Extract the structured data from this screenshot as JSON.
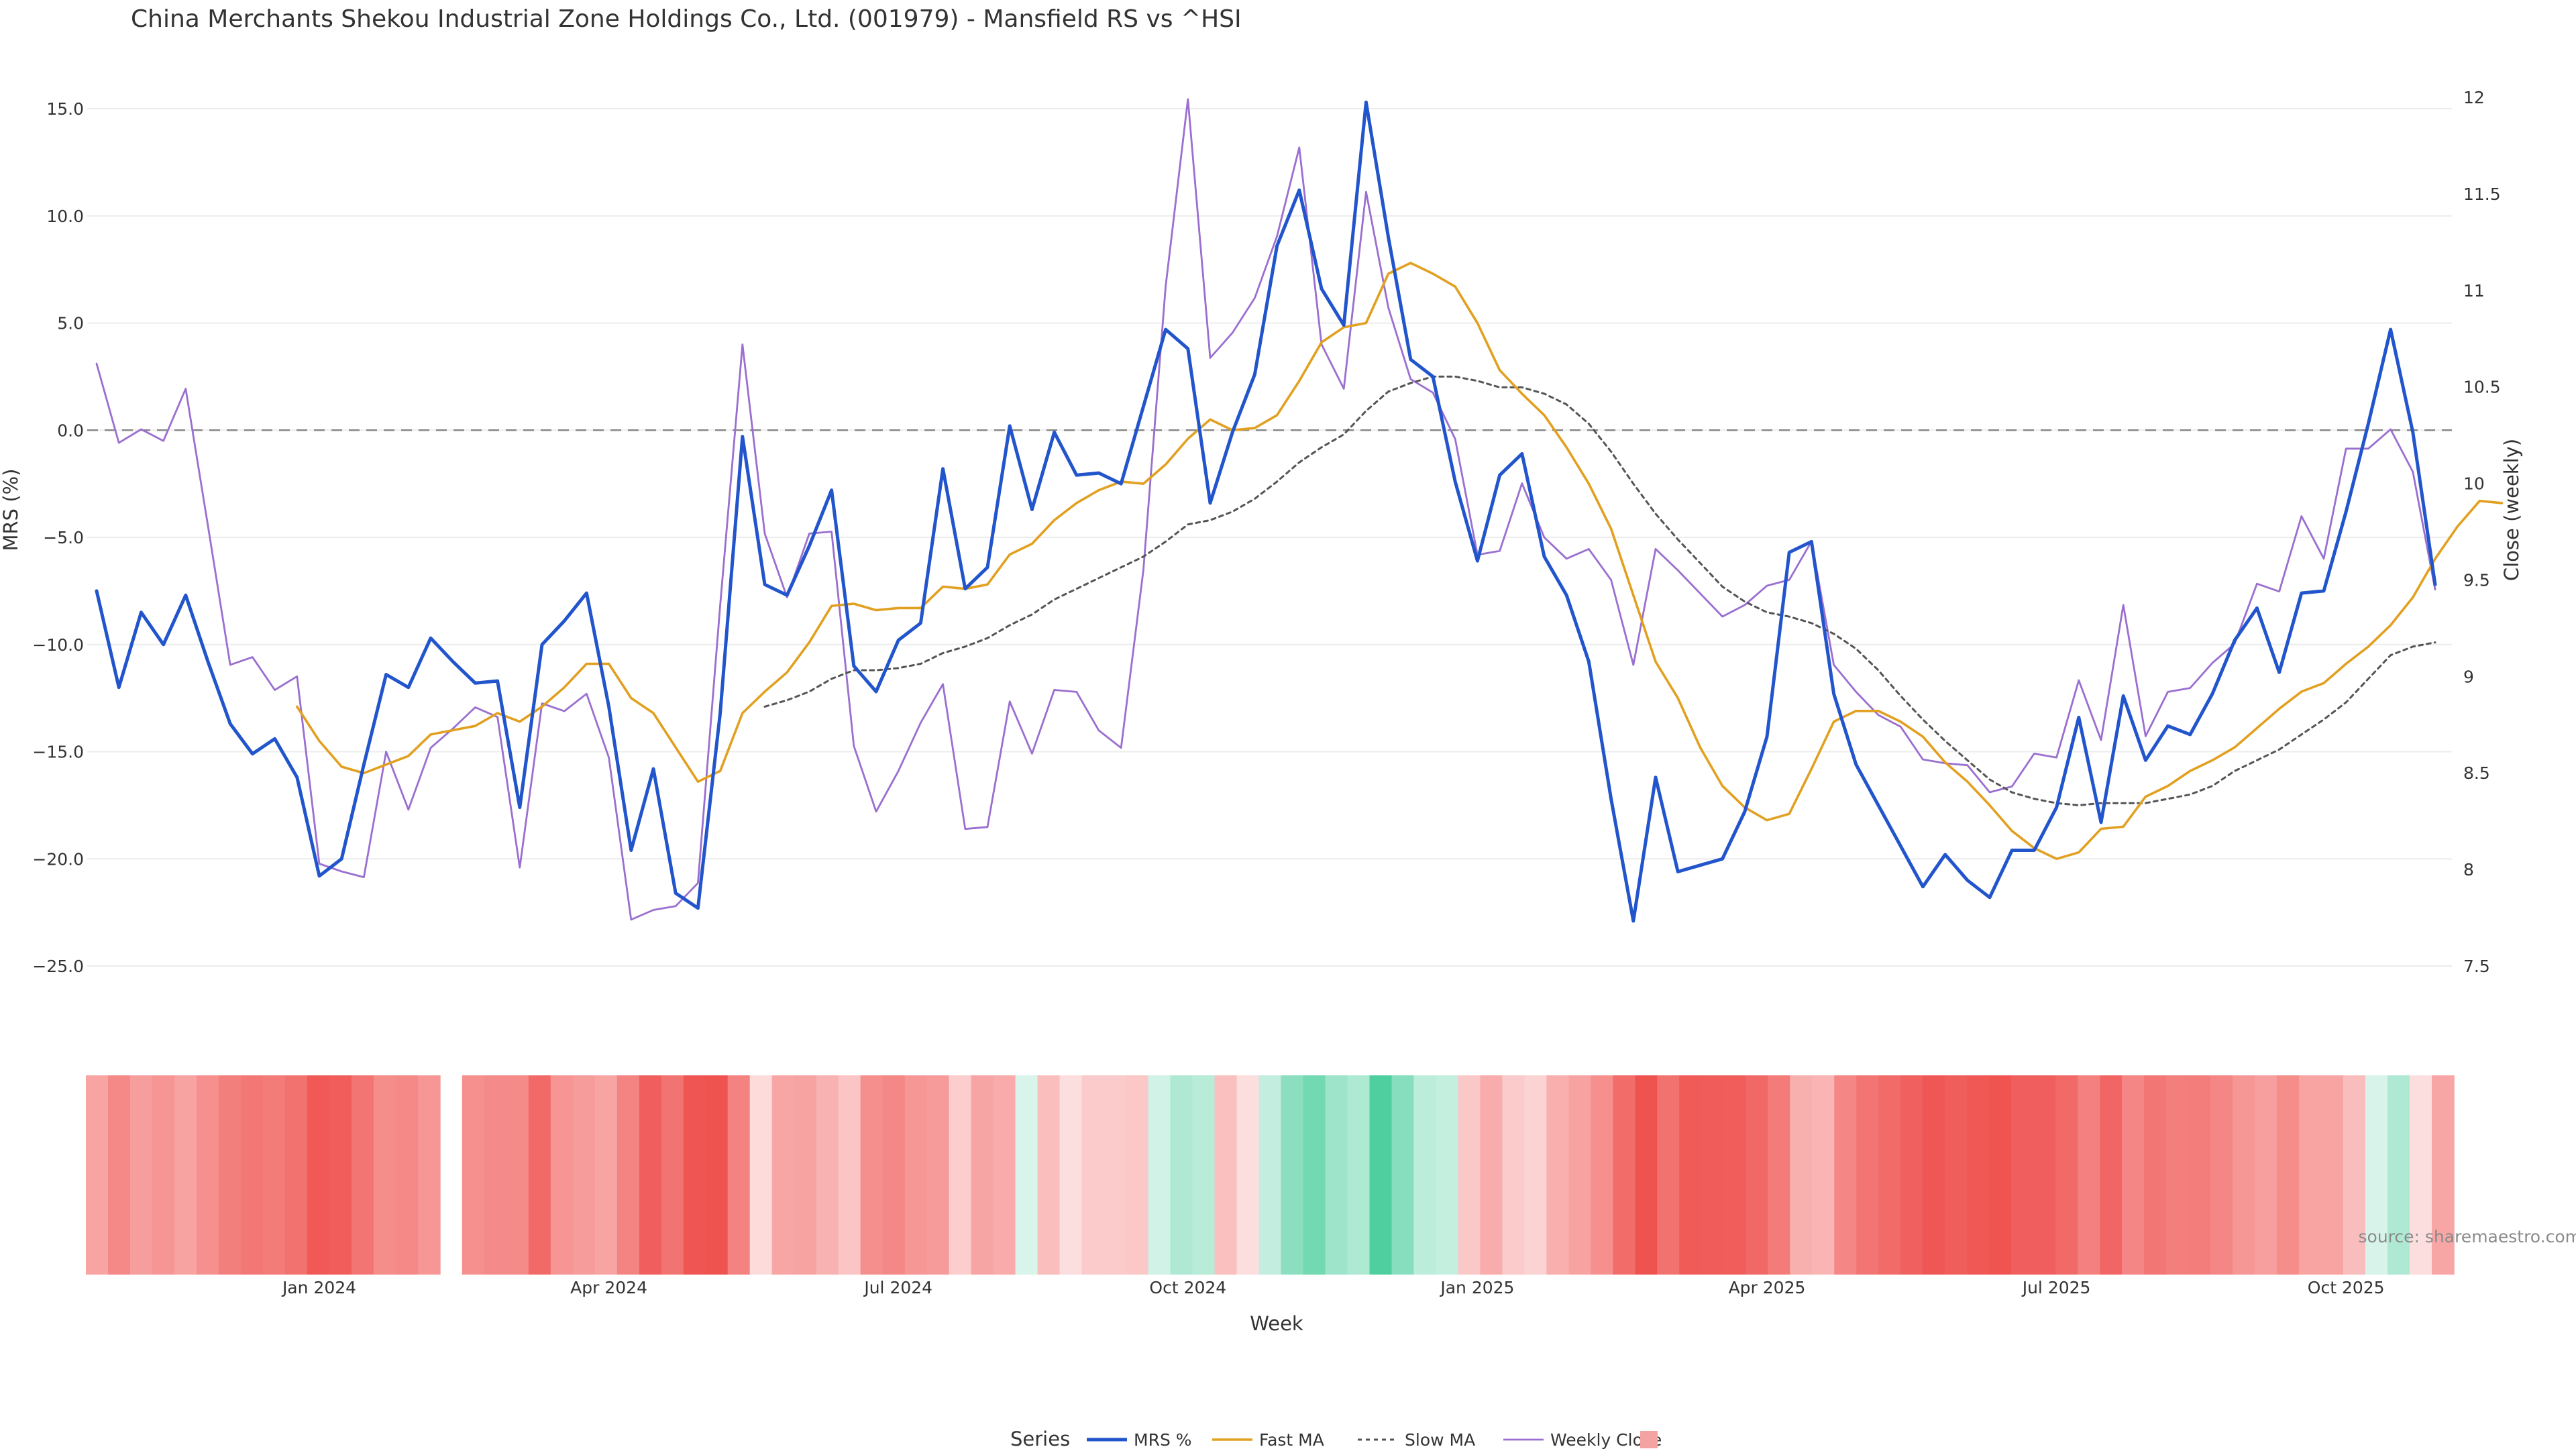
{
  "chart_data": {
    "type": "line",
    "title": "China Merchants Shekou Industrial Zone Holdings Co., Ltd. (001979) - Mansfield RS vs ^HSI",
    "ylabel": "MRS (%)",
    "y2label": "Close (weekly)",
    "xlabel": "Week",
    "ylim": [
      -25,
      15
    ],
    "y_ticks": [
      "15.0",
      "10.0",
      "5.0",
      "0.0",
      "−5.0",
      "−10.0",
      "−15.0",
      "−20.0",
      "−25.0"
    ],
    "y2lim": [
      7.5,
      12
    ],
    "y2_ticks": [
      "12",
      "11.5",
      "11",
      "10.5",
      "10",
      "9.5",
      "9",
      "8.5",
      "8",
      "7.5"
    ],
    "x_ticks": [
      "Jan 2024",
      "Apr 2024",
      "Jul 2024",
      "Oct 2024",
      "Jan 2025",
      "Apr 2025",
      "Jul 2025",
      "Oct 2025"
    ],
    "x_tick_weeks": [
      10,
      23,
      36,
      49,
      62,
      75,
      88,
      101
    ],
    "week_count": 106,
    "reference_line": 0,
    "grid": true,
    "legend_position": "bottom",
    "legend_title": "Series",
    "colors": {
      "mrs": "#2255cc",
      "fast_ma": "#e2a020",
      "slow_ma": "#555555",
      "weekly_close": "#9a6fd0",
      "zero_line": "#888888",
      "heat_negative": "#ef5350",
      "heat_positive": "#4fcf9f"
    },
    "series": [
      {
        "name": "MRS %",
        "start_week": 0,
        "values": [
          -7.5,
          -12.0,
          -8.5,
          -10.0,
          -7.7,
          -10.8,
          -13.7,
          -15.1,
          -14.4,
          -16.2,
          -20.8,
          -20.0,
          -15.6,
          -11.4,
          -12.0,
          -9.7,
          -10.8,
          -11.8,
          -11.7,
          -17.6,
          -10.0,
          -8.9,
          -7.6,
          -12.9,
          -19.6,
          -15.8,
          -21.6,
          -22.3,
          -13.2,
          -0.3,
          -7.2,
          -7.7,
          -5.4,
          -2.8,
          -11.0,
          -12.2,
          -9.8,
          -9.0,
          -1.8,
          -7.4,
          -6.4,
          0.2,
          -3.7,
          -0.1,
          -2.1,
          -2.0,
          -2.5,
          1.1,
          4.7,
          3.8,
          -3.4,
          -0.1,
          2.6,
          8.6,
          11.2,
          6.6,
          4.9,
          15.3,
          9.0,
          3.3,
          2.5,
          -2.4,
          -6.1,
          -2.1,
          -1.1,
          -5.9,
          -7.7,
          -10.8,
          -17.2,
          -22.9,
          -16.2,
          -20.6,
          -20.3,
          -20.0,
          -17.8,
          -14.3,
          -5.7,
          -5.2,
          -12.3,
          -15.6,
          -17.5,
          -19.4,
          -21.3,
          -19.8,
          -21.0,
          -21.8,
          -19.6,
          -19.6,
          -17.6,
          -13.4,
          -18.3,
          -12.4,
          -15.4,
          -13.8,
          -14.2,
          -12.3,
          -9.8,
          -8.3,
          -11.3,
          -7.6,
          -7.5,
          -3.8,
          0.3,
          4.7,
          -0.1,
          -7.2
        ]
      },
      {
        "name": "Fast MA",
        "start_week": 9,
        "values": [
          -12.9,
          -14.5,
          -15.7,
          -16.0,
          -15.6,
          -15.2,
          -14.2,
          -14.0,
          -13.8,
          -13.2,
          -13.6,
          -12.9,
          -12.0,
          -10.9,
          -10.9,
          -12.5,
          -13.2,
          -14.8,
          -16.4,
          -15.9,
          -13.2,
          -12.2,
          -11.3,
          -9.9,
          -8.2,
          -8.1,
          -8.4,
          -8.3,
          -8.3,
          -7.3,
          -7.4,
          -7.2,
          -5.8,
          -5.3,
          -4.2,
          -3.4,
          -2.8,
          -2.4,
          -2.5,
          -1.6,
          -0.4,
          0.5,
          0.0,
          0.1,
          0.7,
          2.3,
          4.1,
          4.8,
          5.0,
          7.3,
          7.8,
          7.3,
          6.7,
          5.0,
          2.8,
          1.7,
          0.7,
          -0.8,
          -2.5,
          -4.6,
          -7.7,
          -10.8,
          -12.5,
          -14.8,
          -16.6,
          -17.6,
          -18.2,
          -17.9,
          -15.8,
          -13.6,
          -13.1,
          -13.1,
          -13.6,
          -14.3,
          -15.5,
          -16.4,
          -17.5,
          -18.7,
          -19.5,
          -20.0,
          -19.7,
          -18.6,
          -18.5,
          -17.1,
          -16.6,
          -15.9,
          -15.4,
          -14.8,
          -13.9,
          -13.0,
          -12.2,
          -11.8,
          -10.9,
          -10.1,
          -9.1,
          -7.8,
          -6.0,
          -4.5,
          -3.3,
          -3.4
        ]
      },
      {
        "name": "Slow MA",
        "start_week": 30,
        "values": [
          -12.9,
          -12.6,
          -12.2,
          -11.6,
          -11.2,
          -11.2,
          -11.1,
          -10.9,
          -10.4,
          -10.1,
          -9.7,
          -9.1,
          -8.6,
          -7.9,
          -7.4,
          -6.9,
          -6.4,
          -5.9,
          -5.2,
          -4.4,
          -4.2,
          -3.8,
          -3.2,
          -2.4,
          -1.5,
          -0.8,
          -0.2,
          0.9,
          1.8,
          2.2,
          2.5,
          2.5,
          2.3,
          2.0,
          2.0,
          1.7,
          1.2,
          0.3,
          -1.0,
          -2.5,
          -3.9,
          -5.1,
          -6.2,
          -7.3,
          -8.0,
          -8.5,
          -8.7,
          -9.0,
          -9.5,
          -10.2,
          -11.2,
          -12.4,
          -13.5,
          -14.5,
          -15.4,
          -16.3,
          -16.9,
          -17.2,
          -17.4,
          -17.5,
          -17.4,
          -17.4,
          -17.4,
          -17.2,
          -17.0,
          -16.6,
          -15.9,
          -15.4,
          -14.9,
          -14.2,
          -13.5,
          -12.7,
          -11.6,
          -10.5,
          -10.1,
          -9.9
        ]
      },
      {
        "name": "Weekly Close",
        "axis": "right",
        "start_week": 0,
        "values": [
          10.62,
          10.21,
          10.28,
          10.22,
          10.49,
          9.78,
          9.06,
          9.1,
          8.93,
          9.0,
          8.03,
          7.99,
          7.96,
          8.61,
          8.31,
          8.63,
          8.73,
          8.84,
          8.79,
          8.01,
          8.86,
          8.82,
          8.91,
          8.58,
          7.74,
          7.79,
          7.81,
          7.93,
          9.37,
          10.72,
          9.74,
          9.41,
          9.74,
          9.75,
          8.64,
          8.3,
          8.51,
          8.76,
          8.96,
          8.21,
          8.22,
          8.87,
          8.6,
          8.93,
          8.92,
          8.72,
          8.63,
          9.55,
          11.02,
          11.99,
          10.65,
          10.78,
          10.96,
          11.28,
          11.74,
          10.72,
          10.49,
          11.51,
          10.91,
          10.54,
          10.47,
          10.23,
          9.63,
          9.65,
          10.0,
          9.72,
          9.61,
          9.66,
          9.5,
          9.06,
          9.66,
          9.55,
          9.43,
          9.31,
          9.37,
          9.47,
          9.5,
          9.7,
          9.06,
          8.92,
          8.8,
          8.74,
          8.57,
          8.55,
          8.54,
          8.4,
          8.43,
          8.6,
          8.58,
          8.98,
          8.67,
          9.37,
          8.69,
          8.92,
          8.94,
          9.07,
          9.17,
          9.48,
          9.44,
          9.83,
          9.61,
          10.18,
          10.18,
          10.28,
          10.06,
          9.45
        ]
      }
    ],
    "heatmap_strip": {
      "name": "",
      "gap_after_week": 15,
      "values": [
        -7.5,
        -12.0,
        -8.5,
        -10.0,
        -7.7,
        -10.8,
        -13.7,
        -15.1,
        -14.4,
        -16.2,
        -20.8,
        -20.0,
        -15.6,
        -11.4,
        -12.0,
        -9.7,
        -10.8,
        -11.8,
        -11.7,
        -17.6,
        -10.0,
        -8.9,
        -7.6,
        -12.9,
        -19.6,
        -15.8,
        -21.6,
        -22.3,
        -13.2,
        -0.3,
        -7.2,
        -7.7,
        -5.4,
        -2.8,
        -11.0,
        -12.2,
        -9.8,
        -9.0,
        -1.8,
        -7.4,
        -6.4,
        0.2,
        -3.7,
        -0.1,
        -2.1,
        -2.0,
        -2.5,
        1.1,
        4.7,
        3.8,
        -3.4,
        -0.1,
        2.6,
        8.6,
        11.2,
        6.6,
        4.9,
        15.3,
        9.0,
        3.3,
        2.5,
        -2.4,
        -6.1,
        -2.1,
        -1.1,
        -5.9,
        -7.7,
        -10.8,
        -17.2,
        -22.9,
        -16.2,
        -20.6,
        -20.3,
        -20.0,
        -17.8,
        -14.3,
        -5.7,
        -5.2,
        -12.3,
        -15.6,
        -17.5,
        -19.4,
        -21.3,
        -19.8,
        -21.0,
        -21.8,
        -19.6,
        -19.6,
        -17.6,
        -13.4,
        -18.3,
        -12.4,
        -15.4,
        -13.8,
        -14.2,
        -12.3,
        -9.8,
        -8.3,
        -11.3,
        -7.6,
        -7.5,
        -3.8,
        0.3,
        4.7,
        -0.1,
        -7.2
      ]
    },
    "source_text": "source: sharemaestro.com"
  }
}
